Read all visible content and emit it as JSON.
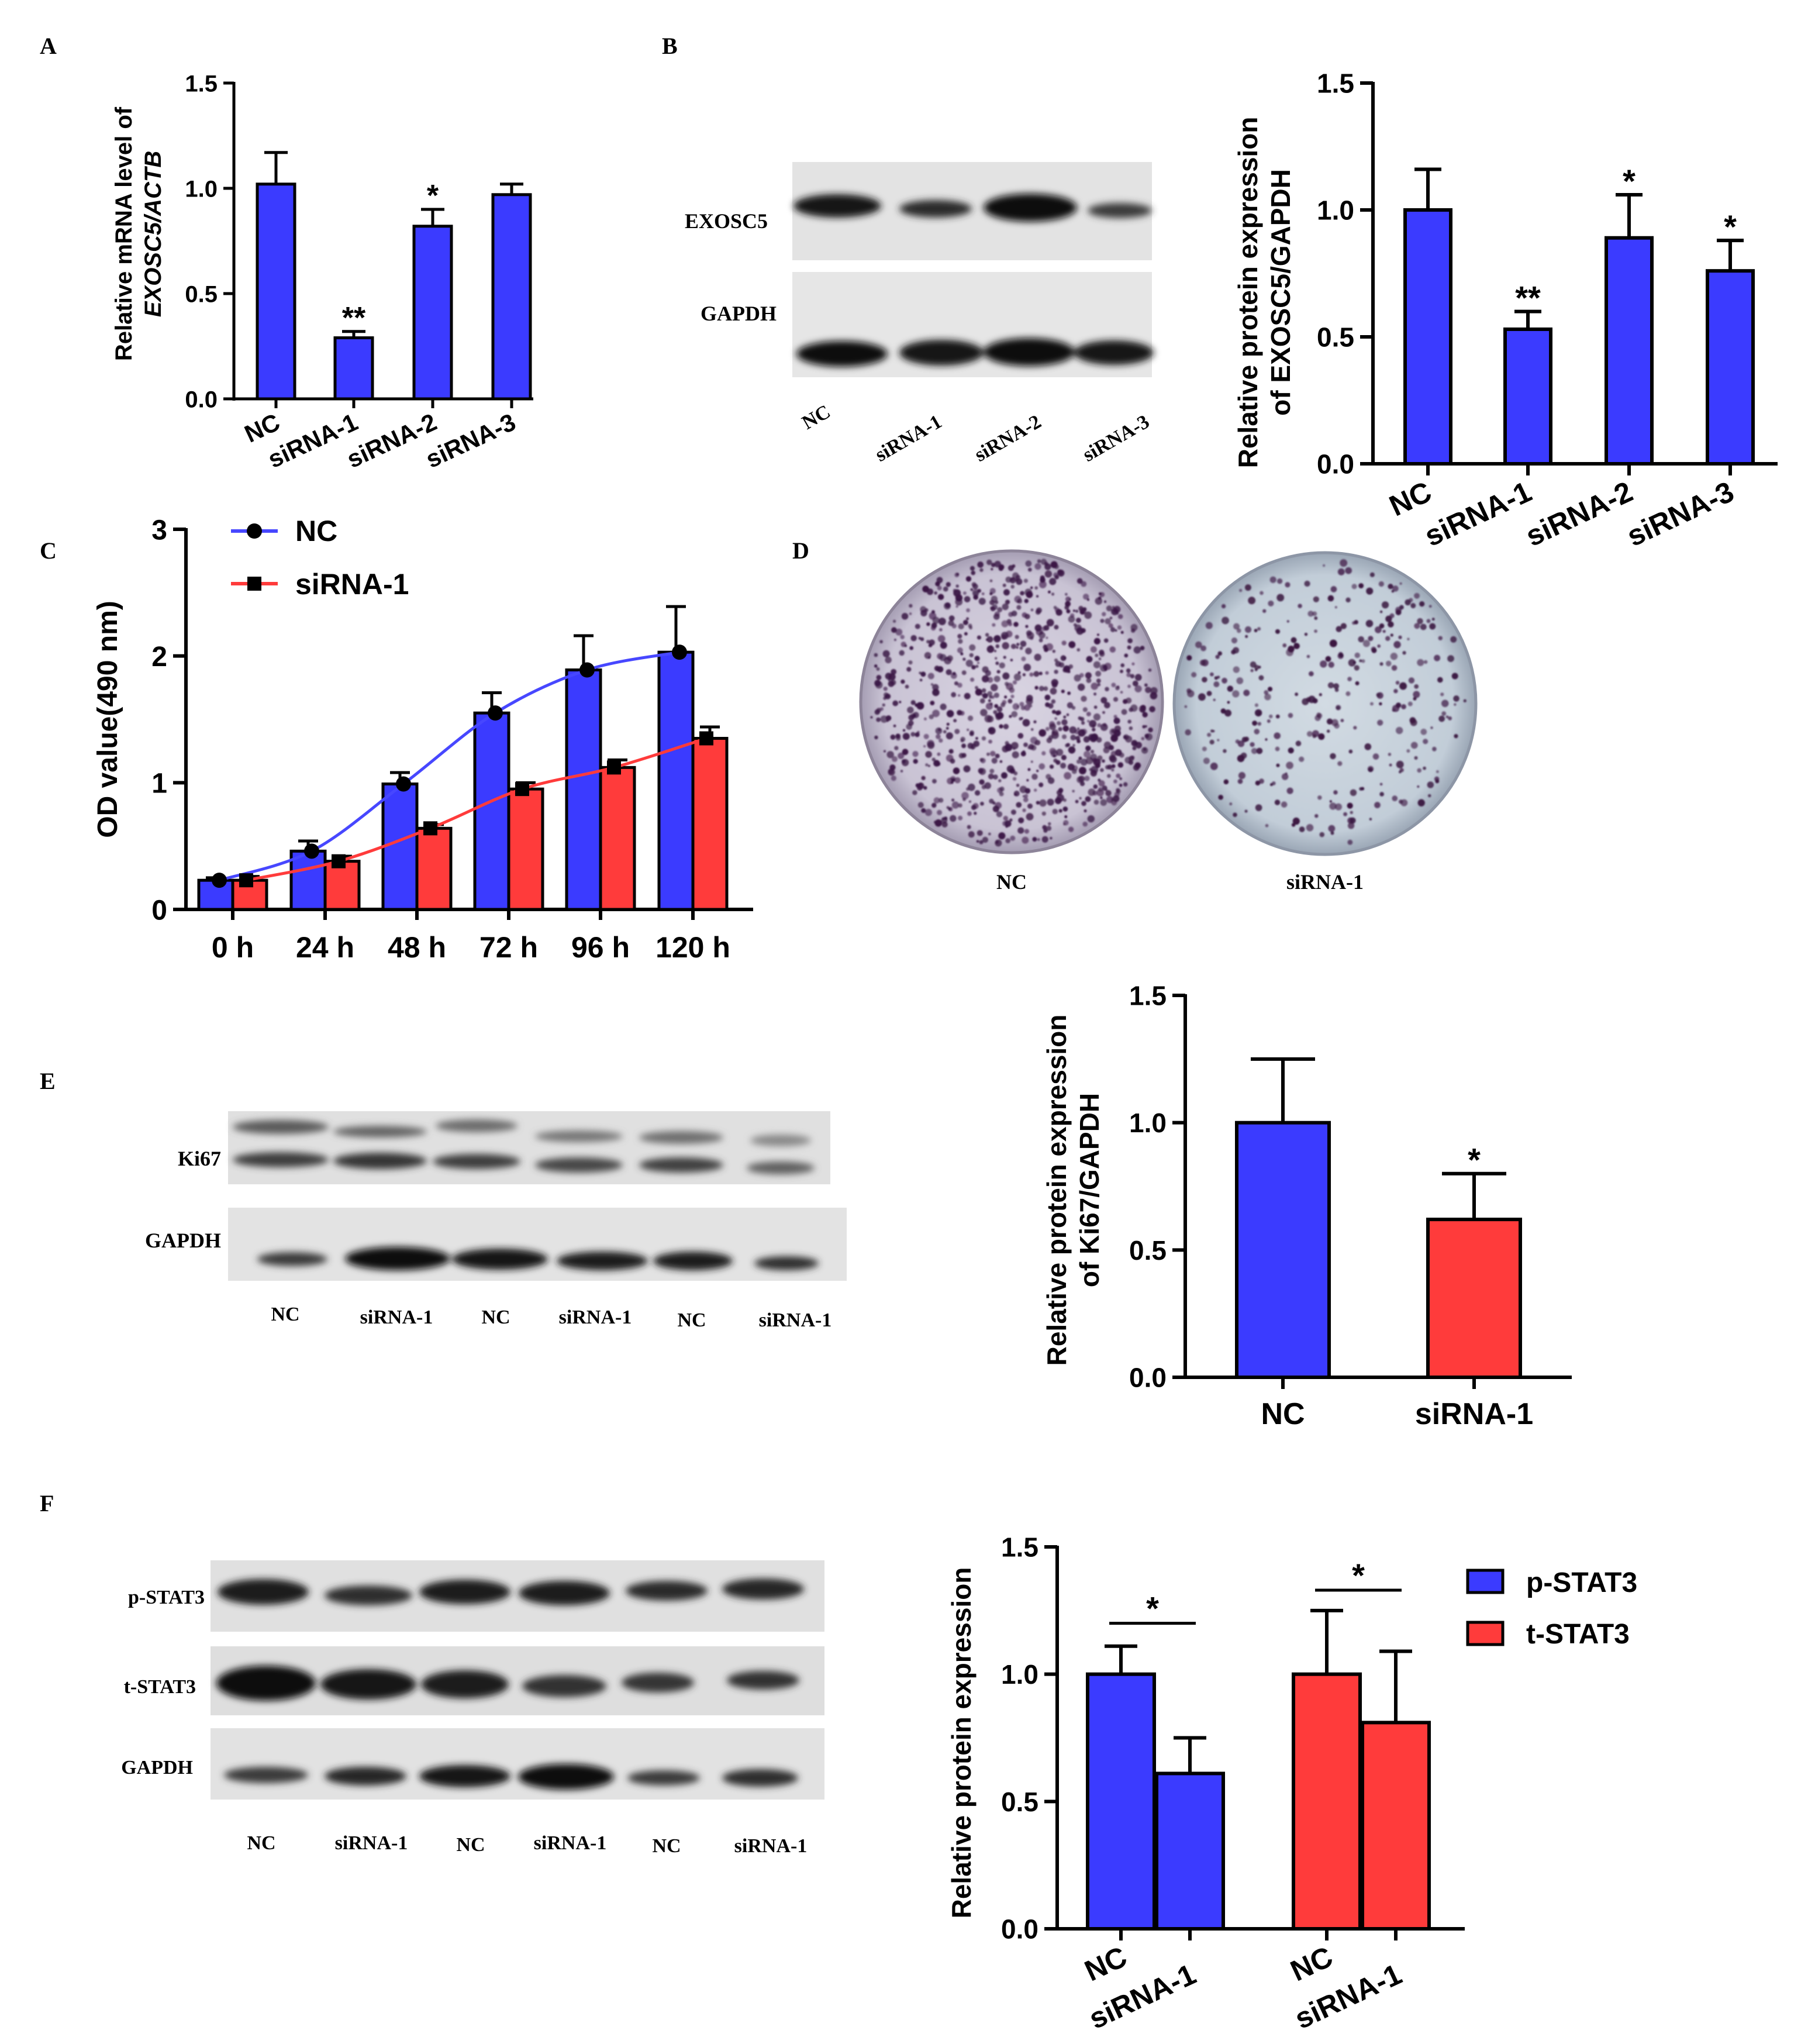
{
  "panels": {
    "A": {
      "letter": "A"
    },
    "B": {
      "letter": "B"
    },
    "C": {
      "letter": "C"
    },
    "D": {
      "letter": "D"
    },
    "E": {
      "letter": "E"
    },
    "F": {
      "letter": "F"
    }
  },
  "colors": {
    "nc_blue": "#3b3bff",
    "sirna_red": "#ff3b3b",
    "axis": "#000000",
    "curve_nc": "#4747ff",
    "curve_sirna": "#ff3b3b"
  },
  "blots": {
    "B": {
      "rows": [
        "EXOSC5",
        "GAPDH"
      ],
      "lanes": [
        "NC",
        "siRNA-1",
        "siRNA-2",
        "siRNA-3"
      ]
    },
    "E": {
      "rows": [
        "Ki67",
        "GAPDH"
      ],
      "lanes": [
        "NC",
        "siRNA-1",
        "NC",
        "siRNA-1",
        "NC",
        "siRNA-1"
      ]
    },
    "F": {
      "rows": [
        "p-STAT3",
        "t-STAT3",
        "GAPDH"
      ],
      "lanes": [
        "NC",
        "siRNA-1",
        "NC",
        "siRNA-1",
        "NC",
        "siRNA-1"
      ]
    }
  },
  "colony": {
    "labels": [
      "NC",
      "siRNA-1"
    ],
    "colony_density": [
      900,
      330
    ]
  },
  "chart_data": [
    {
      "panel": "A",
      "type": "bar",
      "categories": [
        "NC",
        "siRNA-1",
        "siRNA-2",
        "siRNA-3"
      ],
      "values": [
        1.02,
        0.29,
        0.82,
        0.97
      ],
      "errors": [
        0.15,
        0.03,
        0.08,
        0.05
      ],
      "significance": [
        "",
        "**",
        "*",
        ""
      ],
      "ylabel": [
        "Relative mRNA level of",
        "EXOSC5/ACTB"
      ],
      "ylim": [
        0,
        1.5
      ],
      "yticks": [
        "0.0",
        "0.5",
        "1.0",
        "1.5"
      ],
      "color": "#3b3bff"
    },
    {
      "panel": "B",
      "type": "bar",
      "categories": [
        "NC",
        "siRNA-1",
        "siRNA-2",
        "siRNA-3"
      ],
      "values": [
        1.0,
        0.53,
        0.89,
        0.76
      ],
      "errors": [
        0.16,
        0.07,
        0.17,
        0.12
      ],
      "significance": [
        "",
        "**",
        "*",
        "*"
      ],
      "ylabel": [
        "Relative protein expression",
        "of EXOSC5/GAPDH"
      ],
      "ylim": [
        0,
        1.5
      ],
      "yticks": [
        "0.0",
        "0.5",
        "1.0",
        "1.5"
      ],
      "color": "#3b3bff"
    },
    {
      "panel": "C",
      "type": "bar",
      "categories": [
        "0 h",
        "24 h",
        "48 h",
        "72 h",
        "96 h",
        "120 h"
      ],
      "series": [
        {
          "name": "NC",
          "values": [
            0.23,
            0.46,
            0.99,
            1.55,
            1.89,
            2.03
          ],
          "errors": [
            0.02,
            0.08,
            0.09,
            0.16,
            0.27,
            0.36
          ],
          "color": "#3b3bff",
          "marker": "circle"
        },
        {
          "name": "siRNA-1",
          "values": [
            0.23,
            0.38,
            0.64,
            0.95,
            1.12,
            1.35
          ],
          "errors": [
            0.03,
            0.04,
            0.03,
            0.05,
            0.06,
            0.09
          ],
          "color": "#ff3b3b",
          "marker": "square"
        }
      ],
      "ylabel": "OD value(490 nm)",
      "ylim": [
        0,
        3
      ],
      "yticks": [
        "0",
        "1",
        "2",
        "3"
      ],
      "legend": "top-left"
    },
    {
      "panel": "E",
      "type": "bar",
      "categories": [
        "NC",
        "siRNA-1"
      ],
      "values": [
        1.0,
        0.62
      ],
      "errors": [
        0.25,
        0.18
      ],
      "colors": [
        "#3b3bff",
        "#ff3b3b"
      ],
      "significance": [
        "",
        "*"
      ],
      "ylabel": [
        "Relative protein expression",
        "of Ki67/GAPDH"
      ],
      "ylim": [
        0,
        1.5
      ],
      "yticks": [
        "0.0",
        "0.5",
        "1.0",
        "1.5"
      ]
    },
    {
      "panel": "F",
      "type": "bar",
      "categories": [
        "NC",
        "siRNA-1"
      ],
      "series": [
        {
          "name": "p-STAT3",
          "values": [
            1.0,
            0.61
          ],
          "errors": [
            0.11,
            0.14
          ],
          "color": "#3b3bff"
        },
        {
          "name": "t-STAT3",
          "values": [
            1.0,
            0.81
          ],
          "errors": [
            0.25,
            0.28
          ],
          "color": "#ff3b3b"
        }
      ],
      "significance": [
        "*",
        "*"
      ],
      "ylabel": "Relative protein expression",
      "ylim": [
        0,
        1.5
      ],
      "yticks": [
        "0.0",
        "0.5",
        "1.0",
        "1.5"
      ],
      "legend": "top-right"
    }
  ]
}
